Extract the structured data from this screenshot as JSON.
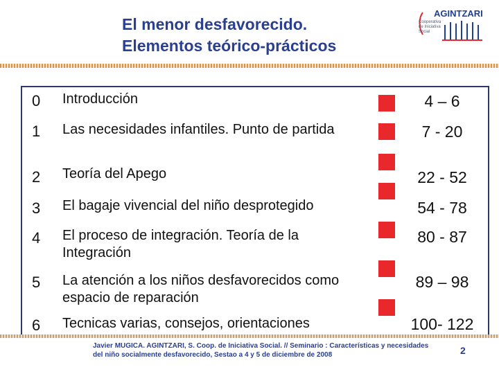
{
  "title": {
    "line1": "El menor desfavorecido.",
    "line2": "Elementos teórico-prácticos"
  },
  "logo": {
    "name": "AGINTZARI",
    "tagline": "Cooperativa de Iniciativa Social"
  },
  "agenda": [
    {
      "num": "0",
      "topic": "Introducción",
      "pages": "4 – 6"
    },
    {
      "num": "1",
      "topic": "Las necesidades infantiles. Punto de partida",
      "pages": "7 - 20"
    },
    {
      "num": "2",
      "topic": "Teoría del Apego",
      "pages": "22 - 52"
    },
    {
      "num": "3",
      "topic": "El bagaje vivencial del niño desprotegido",
      "pages": "54 - 78"
    },
    {
      "num": "4",
      "topic": "El proceso de integración. Teoría de la Integración",
      "pages": "80 - 87"
    },
    {
      "num": "5",
      "topic": "La atención a los niños desfavorecidos como espacio de reparación",
      "pages": "89 – 98"
    },
    {
      "num": "6",
      "topic": "Tecnicas varias, consejos, orientaciones",
      "pages": "100- 122"
    }
  ],
  "footer": {
    "text": "Javier MUGICA. AGINTZARI, S. Coop. de Iniciativa Social. // Seminario : Características y necesidades del niño socialmente desfavorecido, Sestao a 4 y 5 de diciembre de 2008"
  },
  "page_number": "2",
  "colors": {
    "title": "#2a3f8f",
    "bullet": "#e8282a",
    "rule": "#d8944a"
  }
}
